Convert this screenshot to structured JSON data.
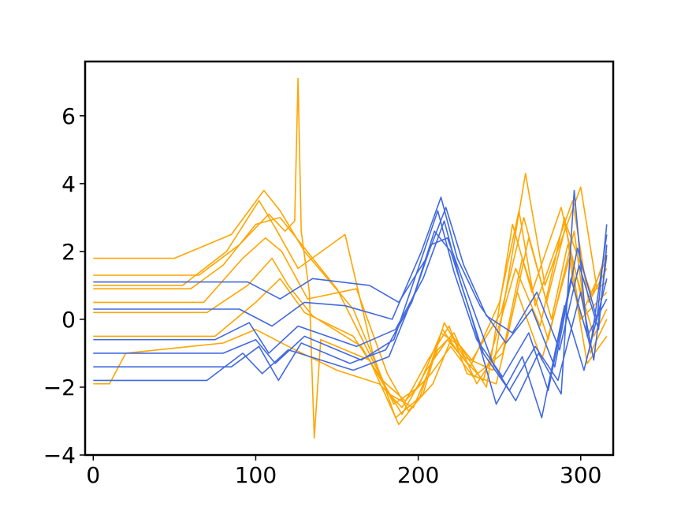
{
  "chart_data": {
    "type": "line",
    "title": "",
    "xlabel": "",
    "ylabel": "",
    "xlim": [
      -5,
      320
    ],
    "ylim": [
      -4,
      7.6
    ],
    "x_ticks": [
      0,
      100,
      200,
      300
    ],
    "y_ticks": [
      -4,
      -2,
      0,
      2,
      4,
      6
    ],
    "x_tick_labels": [
      "0",
      "100",
      "200",
      "300"
    ],
    "y_tick_labels": [
      "−4",
      "−2",
      "0",
      "2",
      "4",
      "6"
    ],
    "grid": false,
    "legend": "none",
    "colors": {
      "class_a": "#4169e1",
      "class_b": "#ffa500"
    },
    "x_length": 316,
    "series": [
      {
        "class": "class_b",
        "points": [
          [
            0,
            0.9
          ],
          [
            60,
            0.9
          ],
          [
            80,
            1.6
          ],
          [
            100,
            2.8
          ],
          [
            115,
            3.0
          ],
          [
            125,
            2.4
          ],
          [
            150,
            0.9
          ],
          [
            175,
            -1.5
          ],
          [
            185,
            -2.5
          ],
          [
            200,
            -2.0
          ],
          [
            215,
            -0.3
          ],
          [
            225,
            -1.0
          ],
          [
            240,
            -1.8
          ],
          [
            260,
            1.5
          ],
          [
            275,
            -0.2
          ],
          [
            290,
            3.0
          ],
          [
            300,
            0.0
          ],
          [
            316,
            0.8
          ]
        ]
      },
      {
        "class": "class_b",
        "points": [
          [
            0,
            1.8
          ],
          [
            50,
            1.8
          ],
          [
            85,
            2.5
          ],
          [
            105,
            3.8
          ],
          [
            115,
            3.2
          ],
          [
            130,
            2.0
          ],
          [
            160,
            0.3
          ],
          [
            180,
            -2.0
          ],
          [
            190,
            -2.8
          ],
          [
            205,
            -1.5
          ],
          [
            218,
            -0.6
          ],
          [
            232,
            -1.4
          ],
          [
            250,
            0.5
          ],
          [
            262,
            3.2
          ],
          [
            272,
            0.4
          ],
          [
            295,
            3.5
          ],
          [
            305,
            0.5
          ],
          [
            316,
            1.5
          ]
        ]
      },
      {
        "class": "class_b",
        "points": [
          [
            0,
            0.2
          ],
          [
            70,
            0.2
          ],
          [
            95,
            1.0
          ],
          [
            110,
            1.8
          ],
          [
            120,
            1.0
          ],
          [
            135,
            0.1
          ],
          [
            165,
            -0.8
          ],
          [
            182,
            -2.2
          ],
          [
            197,
            -2.6
          ],
          [
            212,
            -0.9
          ],
          [
            222,
            -0.4
          ],
          [
            236,
            -1.9
          ],
          [
            255,
            -0.5
          ],
          [
            268,
            2.4
          ],
          [
            282,
            0.0
          ],
          [
            292,
            2.2
          ],
          [
            308,
            -0.5
          ],
          [
            316,
            0.3
          ]
        ]
      },
      {
        "class": "class_b",
        "points": [
          [
            0,
            1.3
          ],
          [
            65,
            1.3
          ],
          [
            90,
            2.2
          ],
          [
            108,
            3.1
          ],
          [
            118,
            2.6
          ],
          [
            124,
            2.9
          ],
          [
            126,
            7.1
          ],
          [
            128,
            2.6
          ],
          [
            133,
            0.8
          ],
          [
            136,
            -3.5
          ],
          [
            140,
            -0.6
          ],
          [
            170,
            -1.2
          ],
          [
            188,
            -3.1
          ],
          [
            203,
            -2.2
          ],
          [
            216,
            -0.1
          ],
          [
            228,
            -1.1
          ],
          [
            246,
            -1.5
          ],
          [
            266,
            4.3
          ],
          [
            278,
            1.0
          ],
          [
            300,
            3.9
          ],
          [
            310,
            0.9
          ],
          [
            316,
            1.1
          ]
        ]
      },
      {
        "class": "class_b",
        "points": [
          [
            0,
            -0.5
          ],
          [
            75,
            -0.5
          ],
          [
            100,
            0.5
          ],
          [
            115,
            1.2
          ],
          [
            130,
            0.2
          ],
          [
            160,
            -0.5
          ],
          [
            178,
            -1.8
          ],
          [
            192,
            -2.4
          ],
          [
            208,
            -1.6
          ],
          [
            220,
            -0.8
          ],
          [
            234,
            -1.7
          ],
          [
            252,
            -1.0
          ],
          [
            264,
            1.8
          ],
          [
            280,
            -0.6
          ],
          [
            296,
            2.6
          ],
          [
            306,
            -1.0
          ],
          [
            316,
            0.0
          ]
        ]
      },
      {
        "class": "class_b",
        "points": [
          [
            0,
            1.0
          ],
          [
            55,
            1.0
          ],
          [
            82,
            2.0
          ],
          [
            102,
            3.5
          ],
          [
            112,
            2.7
          ],
          [
            126,
            1.5
          ],
          [
            155,
            2.5
          ],
          [
            172,
            -1.0
          ],
          [
            186,
            -2.9
          ],
          [
            201,
            -2.3
          ],
          [
            214,
            -0.4
          ],
          [
            226,
            -0.8
          ],
          [
            242,
            -2.0
          ],
          [
            258,
            2.8
          ],
          [
            270,
            0.8
          ],
          [
            288,
            3.3
          ],
          [
            302,
            0.3
          ],
          [
            316,
            1.8
          ]
        ]
      },
      {
        "class": "class_b",
        "points": [
          [
            0,
            -1.9
          ],
          [
            10,
            -1.9
          ],
          [
            20,
            -1.0
          ],
          [
            80,
            -0.7
          ],
          [
            100,
            -0.3
          ],
          [
            120,
            -0.8
          ],
          [
            150,
            -1.5
          ],
          [
            176,
            -1.9
          ],
          [
            190,
            -2.6
          ],
          [
            206,
            -1.2
          ],
          [
            219,
            -0.2
          ],
          [
            230,
            -1.6
          ],
          [
            248,
            -1.9
          ],
          [
            261,
            0.8
          ],
          [
            276,
            -1.2
          ],
          [
            293,
            1.8
          ],
          [
            304,
            -1.3
          ],
          [
            316,
            -0.5
          ]
        ]
      },
      {
        "class": "class_b",
        "points": [
          [
            0,
            0.5
          ],
          [
            68,
            0.5
          ],
          [
            92,
            1.8
          ],
          [
            106,
            2.4
          ],
          [
            116,
            2.0
          ],
          [
            132,
            0.6
          ],
          [
            162,
            0.9
          ],
          [
            181,
            -1.6
          ],
          [
            194,
            -2.7
          ],
          [
            209,
            -1.9
          ],
          [
            221,
            -0.5
          ],
          [
            233,
            -1.2
          ],
          [
            251,
            0.2
          ],
          [
            265,
            3.0
          ],
          [
            279,
            0.5
          ],
          [
            291,
            2.8
          ],
          [
            307,
            0.7
          ],
          [
            316,
            2.0
          ]
        ]
      },
      {
        "class": "class_a",
        "points": [
          [
            0,
            -1.0
          ],
          [
            80,
            -1.0
          ],
          [
            100,
            -0.6
          ],
          [
            112,
            -1.3
          ],
          [
            130,
            -0.5
          ],
          [
            165,
            -1.2
          ],
          [
            185,
            -0.6
          ],
          [
            200,
            1.5
          ],
          [
            212,
            3.2
          ],
          [
            222,
            1.4
          ],
          [
            236,
            -0.6
          ],
          [
            252,
            -1.7
          ],
          [
            268,
            -0.4
          ],
          [
            280,
            -2.1
          ],
          [
            294,
            1.2
          ],
          [
            306,
            -0.8
          ],
          [
            316,
            2.5
          ]
        ]
      },
      {
        "class": "class_a",
        "points": [
          [
            0,
            -1.8
          ],
          [
            70,
            -1.8
          ],
          [
            92,
            -1.0
          ],
          [
            104,
            -1.6
          ],
          [
            120,
            -0.9
          ],
          [
            160,
            -1.5
          ],
          [
            182,
            -1.1
          ],
          [
            198,
            0.8
          ],
          [
            210,
            2.6
          ],
          [
            220,
            2.0
          ],
          [
            232,
            0.2
          ],
          [
            248,
            -2.5
          ],
          [
            264,
            -1.1
          ],
          [
            276,
            -2.9
          ],
          [
            290,
            0.4
          ],
          [
            302,
            -1.5
          ],
          [
            316,
            1.2
          ]
        ]
      },
      {
        "class": "class_a",
        "points": [
          [
            0,
            0.3
          ],
          [
            90,
            0.3
          ],
          [
            110,
            -0.2
          ],
          [
            130,
            0.5
          ],
          [
            155,
            0.4
          ],
          [
            184,
            0.0
          ],
          [
            202,
            2.0
          ],
          [
            214,
            3.6
          ],
          [
            224,
            1.8
          ],
          [
            238,
            0.4
          ],
          [
            254,
            -0.7
          ],
          [
            270,
            0.3
          ],
          [
            284,
            -1.4
          ],
          [
            298,
            2.1
          ],
          [
            310,
            0.0
          ],
          [
            316,
            2.8
          ]
        ]
      },
      {
        "class": "class_a",
        "points": [
          [
            0,
            -0.6
          ],
          [
            75,
            -0.6
          ],
          [
            96,
            -0.1
          ],
          [
            108,
            -1.0
          ],
          [
            126,
            -0.2
          ],
          [
            162,
            -0.8
          ],
          [
            186,
            -0.3
          ],
          [
            203,
            1.2
          ],
          [
            216,
            2.9
          ],
          [
            226,
            1.1
          ],
          [
            240,
            -1.0
          ],
          [
            256,
            -2.1
          ],
          [
            272,
            -0.8
          ],
          [
            286,
            -1.8
          ],
          [
            300,
            0.8
          ],
          [
            308,
            -1.2
          ],
          [
            316,
            1.9
          ]
        ]
      },
      {
        "class": "class_a",
        "points": [
          [
            0,
            -1.4
          ],
          [
            85,
            -1.4
          ],
          [
            102,
            -0.8
          ],
          [
            114,
            -1.8
          ],
          [
            128,
            -0.7
          ],
          [
            158,
            -1.3
          ],
          [
            180,
            -0.9
          ],
          [
            196,
            0.5
          ],
          [
            208,
            2.2
          ],
          [
            218,
            2.4
          ],
          [
            230,
            0.8
          ],
          [
            246,
            -1.3
          ],
          [
            260,
            -2.4
          ],
          [
            274,
            -1.0
          ],
          [
            288,
            -2.2
          ],
          [
            296,
            3.8
          ],
          [
            304,
            -0.5
          ],
          [
            316,
            0.6
          ]
        ]
      },
      {
        "class": "class_a",
        "points": [
          [
            0,
            1.1
          ],
          [
            95,
            1.1
          ],
          [
            115,
            0.6
          ],
          [
            135,
            1.2
          ],
          [
            170,
            1.0
          ],
          [
            188,
            0.5
          ],
          [
            205,
            1.8
          ],
          [
            217,
            3.3
          ],
          [
            228,
            1.6
          ],
          [
            242,
            0.1
          ],
          [
            258,
            -0.4
          ],
          [
            273,
            0.8
          ],
          [
            287,
            -0.9
          ],
          [
            299,
            1.6
          ],
          [
            311,
            -0.3
          ],
          [
            316,
            2.2
          ]
        ]
      }
    ]
  }
}
